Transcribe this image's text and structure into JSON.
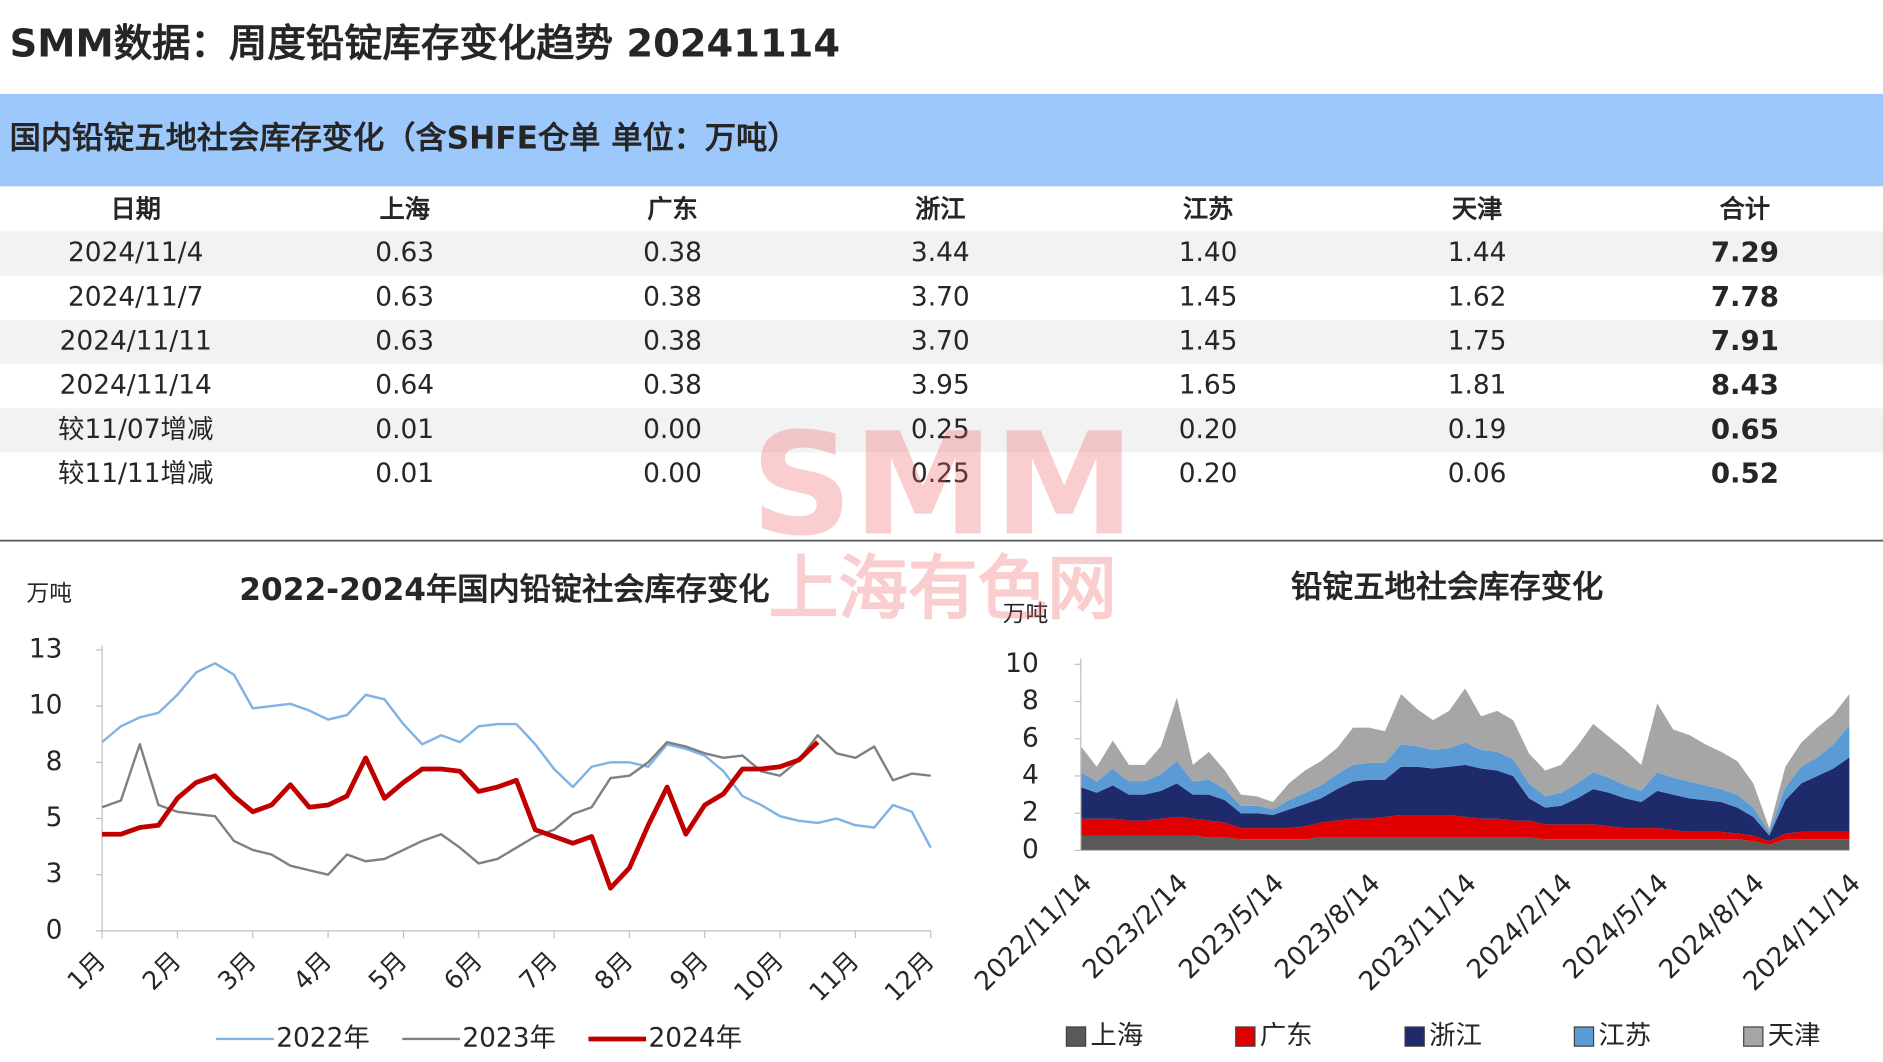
{
  "title": "SMM数据：周度铅锭库存变化趋势 20241114",
  "watermark": {
    "logo": "SMM",
    "text": "上海有色网"
  },
  "table": {
    "title": "国内铅锭五地社会库存变化（含SHFE仓单 单位：万吨）",
    "header": [
      "日期",
      "上海",
      "广东",
      "浙江",
      "江苏",
      "天津",
      "合计"
    ],
    "rows": [
      [
        "2024/11/4",
        "0.63",
        "0.38",
        "3.44",
        "1.40",
        "1.44",
        "7.29"
      ],
      [
        "2024/11/7",
        "0.63",
        "0.38",
        "3.70",
        "1.45",
        "1.62",
        "7.78"
      ],
      [
        "2024/11/11",
        "0.63",
        "0.38",
        "3.70",
        "1.45",
        "1.75",
        "7.91"
      ],
      [
        "2024/11/14",
        "0.64",
        "0.38",
        "3.95",
        "1.65",
        "1.81",
        "8.43"
      ],
      [
        "较11/07增减",
        "0.01",
        "0.00",
        "0.25",
        "0.20",
        "0.19",
        "0.65"
      ],
      [
        "较11/11增减",
        "0.01",
        "0.00",
        "0.25",
        "0.20",
        "0.06",
        "0.52"
      ]
    ]
  },
  "chart_data": [
    {
      "type": "line",
      "title": "2022-2024年国内铅锭社会库存变化",
      "y_label": "万吨",
      "legend": "bottom",
      "x": [
        1,
        1.25,
        1.5,
        1.75,
        2,
        2.25,
        2.5,
        2.75,
        3,
        3.25,
        3.5,
        3.75,
        4,
        4.25,
        4.5,
        4.75,
        5,
        5.25,
        5.5,
        5.75,
        6,
        6.25,
        6.5,
        6.75,
        7,
        7.25,
        7.5,
        7.75,
        8,
        8.25,
        8.5,
        8.75,
        9,
        9.25,
        9.5,
        9.75,
        10,
        10.25,
        10.5,
        10.75,
        11,
        11.25,
        11.5,
        11.75,
        12
      ],
      "xlim": [
        1,
        12
      ],
      "xticks": [
        {
          "value": 1,
          "label": "1月"
        },
        {
          "value": 2,
          "label": "2月"
        },
        {
          "value": 3,
          "label": "3月"
        },
        {
          "value": 4,
          "label": "4月"
        },
        {
          "value": 5,
          "label": "5月"
        },
        {
          "value": 6,
          "label": "6月"
        },
        {
          "value": 7,
          "label": "7月"
        },
        {
          "value": 8,
          "label": "8月"
        },
        {
          "value": 9,
          "label": "9月"
        },
        {
          "value": 10,
          "label": "10月"
        },
        {
          "value": 11,
          "label": "11月"
        },
        {
          "value": 12,
          "label": "12月"
        }
      ],
      "ylim": [
        0,
        12.5
      ],
      "yticks": [
        0,
        {
          "value": 2.5,
          "label": "3"
        },
        5,
        {
          "value": 7.5,
          "label": "8"
        },
        10,
        {
          "value": 12.5,
          "label": "13"
        }
      ],
      "series": [
        {
          "name": "2022年",
          "color": "#7fb2e5",
          "width": 2,
          "values": [
            8.4,
            9.1,
            9.5,
            9.7,
            10.5,
            11.5,
            11.9,
            11.4,
            9.9,
            10.0,
            10.1,
            9.8,
            9.4,
            9.6,
            10.5,
            10.3,
            9.2,
            8.3,
            8.7,
            8.4,
            9.1,
            9.2,
            9.2,
            8.3,
            7.2,
            6.4,
            7.3,
            7.5,
            7.5,
            7.3,
            8.3,
            8.1,
            7.8,
            7.1,
            6.0,
            5.6,
            5.1,
            4.9,
            4.8,
            5.0,
            4.7,
            4.6,
            5.6,
            5.3,
            3.7
          ]
        },
        {
          "name": "2023年",
          "color": "#808080",
          "width": 2,
          "values": [
            5.5,
            5.8,
            8.3,
            5.6,
            5.3,
            5.2,
            5.1,
            4.0,
            3.6,
            3.4,
            2.9,
            2.7,
            2.5,
            3.4,
            3.1,
            3.2,
            3.6,
            4.0,
            4.3,
            3.7,
            3.0,
            3.2,
            3.7,
            4.2,
            4.5,
            5.2,
            5.5,
            6.8,
            6.9,
            7.5,
            8.4,
            8.2,
            7.9,
            7.7,
            7.8,
            7.1,
            6.9,
            7.6,
            8.7,
            7.9,
            7.7,
            8.2,
            6.7,
            7.0,
            6.9
          ]
        },
        {
          "name": "2024年",
          "color": "#c00000",
          "width": 4,
          "values": [
            4.3,
            4.3,
            4.6,
            4.7,
            5.9,
            6.6,
            6.9,
            6.0,
            5.3,
            5.6,
            6.5,
            5.5,
            5.6,
            6.0,
            7.7,
            5.9,
            6.6,
            7.2,
            7.2,
            7.1,
            6.2,
            6.4,
            6.7,
            4.5,
            4.2,
            3.9,
            4.2,
            1.9,
            2.8,
            4.7,
            6.4,
            4.3,
            5.6,
            6.1,
            7.2,
            7.2,
            7.3,
            7.6,
            8.4,
            null,
            null,
            null,
            null,
            null,
            null
          ]
        }
      ]
    },
    {
      "type": "stacked_area",
      "title": "铅锭五地社会库存变化",
      "y_label": "万吨",
      "legend": "bottom",
      "categories": [
        "2022/11/14",
        null,
        null,
        null,
        null,
        null,
        "2023/2/14",
        null,
        null,
        null,
        null,
        null,
        "2023/5/14",
        null,
        null,
        null,
        null,
        null,
        "2023/8/14",
        null,
        null,
        null,
        null,
        null,
        "2023/11/14",
        null,
        null,
        null,
        null,
        null,
        "2024/2/14",
        null,
        null,
        null,
        null,
        null,
        "2024/5/14",
        null,
        null,
        null,
        null,
        null,
        "2024/8/14",
        null,
        null,
        null,
        null,
        null,
        "2024/11/14"
      ],
      "ylim": [
        0,
        10
      ],
      "yticks": [
        0,
        2,
        4,
        6,
        8,
        10
      ],
      "series": [
        {
          "name": "上海",
          "color": "#595959",
          "values": [
            0.8,
            0.8,
            0.8,
            0.8,
            0.8,
            0.8,
            0.8,
            0.8,
            0.7,
            0.7,
            0.6,
            0.6,
            0.6,
            0.6,
            0.6,
            0.7,
            0.7,
            0.7,
            0.7,
            0.7,
            0.7,
            0.7,
            0.7,
            0.7,
            0.7,
            0.7,
            0.7,
            0.7,
            0.7,
            0.6,
            0.6,
            0.6,
            0.6,
            0.6,
            0.6,
            0.6,
            0.6,
            0.6,
            0.6,
            0.6,
            0.6,
            0.6,
            0.5,
            0.3,
            0.6,
            0.6,
            0.6,
            0.6,
            0.6
          ]
        },
        {
          "name": "广东",
          "color": "#e00000",
          "values": [
            0.9,
            0.9,
            0.9,
            0.8,
            0.8,
            0.9,
            1.0,
            0.9,
            0.9,
            0.8,
            0.6,
            0.6,
            0.6,
            0.6,
            0.7,
            0.8,
            0.9,
            1.0,
            1.0,
            1.1,
            1.2,
            1.2,
            1.2,
            1.2,
            1.1,
            1.0,
            1.0,
            0.9,
            0.9,
            0.8,
            0.8,
            0.8,
            0.8,
            0.7,
            0.6,
            0.6,
            0.6,
            0.5,
            0.4,
            0.4,
            0.4,
            0.3,
            0.3,
            0.2,
            0.3,
            0.4,
            0.4,
            0.4,
            0.4
          ]
        },
        {
          "name": "浙江",
          "color": "#1f2a6b",
          "values": [
            1.7,
            1.4,
            1.8,
            1.4,
            1.4,
            1.5,
            1.8,
            1.3,
            1.4,
            1.2,
            0.8,
            0.8,
            0.7,
            1.0,
            1.2,
            1.3,
            1.7,
            2.0,
            2.1,
            2.0,
            2.6,
            2.6,
            2.5,
            2.6,
            2.8,
            2.7,
            2.6,
            2.4,
            1.2,
            0.9,
            1.0,
            1.4,
            1.9,
            1.8,
            1.6,
            1.4,
            2.0,
            1.9,
            1.8,
            1.7,
            1.6,
            1.4,
            1.0,
            0.3,
            1.8,
            2.6,
            3.0,
            3.4,
            4.0
          ]
        },
        {
          "name": "江苏",
          "color": "#5b9bd5",
          "values": [
            0.8,
            0.6,
            0.9,
            0.7,
            0.7,
            0.9,
            1.2,
            0.7,
            0.8,
            0.6,
            0.4,
            0.4,
            0.3,
            0.5,
            0.6,
            0.7,
            0.8,
            0.9,
            0.9,
            0.9,
            1.2,
            1.1,
            1.0,
            1.0,
            1.2,
            1.0,
            1.0,
            0.9,
            0.8,
            0.6,
            0.7,
            0.8,
            0.9,
            0.8,
            0.7,
            0.6,
            1.0,
            0.9,
            0.9,
            0.8,
            0.7,
            0.7,
            0.5,
            0.2,
            0.7,
            0.9,
            1.0,
            1.3,
            1.7
          ]
        },
        {
          "name": "天津",
          "color": "#a6a6a6",
          "values": [
            1.4,
            0.8,
            1.5,
            0.9,
            0.9,
            1.5,
            3.4,
            0.9,
            1.5,
            1.0,
            0.6,
            0.5,
            0.4,
            0.9,
            1.2,
            1.3,
            1.4,
            2.0,
            1.9,
            1.7,
            2.7,
            2.0,
            1.6,
            2.0,
            2.9,
            1.8,
            2.2,
            2.1,
            1.6,
            1.4,
            1.5,
            2.0,
            2.6,
            2.2,
            1.9,
            1.4,
            3.7,
            2.6,
            2.5,
            2.2,
            2.0,
            1.8,
            1.3,
            0.2,
            1.1,
            1.3,
            1.6,
            1.6,
            1.7
          ]
        }
      ]
    }
  ]
}
